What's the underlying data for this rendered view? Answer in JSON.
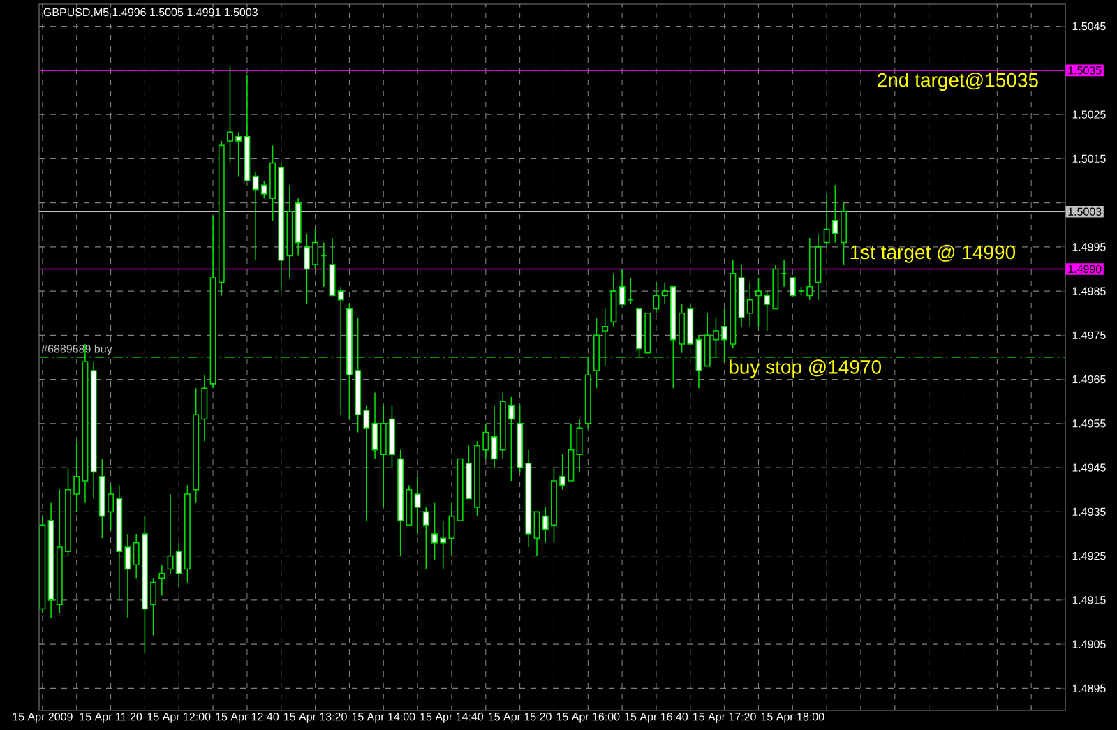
{
  "chart_data": {
    "type": "candlestick",
    "title": "GBPUSD,M5 1.4996 1.5005 1.4991 1.5003",
    "color": "#00dd00",
    "x": [
      "2009-04-15T10:40",
      "2009-04-15T10:45",
      "2009-04-15T10:50",
      "2009-04-15T10:55",
      "2009-04-15T11:00",
      "2009-04-15T11:05",
      "2009-04-15T11:10",
      "2009-04-15T11:15",
      "2009-04-15T11:20",
      "2009-04-15T11:25",
      "2009-04-15T11:30",
      "2009-04-15T11:35",
      "2009-04-15T11:40",
      "2009-04-15T11:45",
      "2009-04-15T11:50",
      "2009-04-15T11:55",
      "2009-04-15T12:00",
      "2009-04-15T12:05",
      "2009-04-15T12:10",
      "2009-04-15T12:15",
      "2009-04-15T12:20",
      "2009-04-15T12:25",
      "2009-04-15T12:30",
      "2009-04-15T12:35",
      "2009-04-15T12:40",
      "2009-04-15T12:45",
      "2009-04-15T12:50",
      "2009-04-15T12:55",
      "2009-04-15T13:00",
      "2009-04-15T13:05",
      "2009-04-15T13:10",
      "2009-04-15T13:15",
      "2009-04-15T13:20",
      "2009-04-15T13:25",
      "2009-04-15T13:30",
      "2009-04-15T13:35",
      "2009-04-15T13:40",
      "2009-04-15T13:45",
      "2009-04-15T13:50",
      "2009-04-15T13:55",
      "2009-04-15T14:00",
      "2009-04-15T14:05",
      "2009-04-15T14:10",
      "2009-04-15T14:15",
      "2009-04-15T14:20",
      "2009-04-15T14:25",
      "2009-04-15T14:30",
      "2009-04-15T14:35",
      "2009-04-15T14:40",
      "2009-04-15T14:45",
      "2009-04-15T14:50",
      "2009-04-15T14:55",
      "2009-04-15T15:00",
      "2009-04-15T15:05",
      "2009-04-15T15:10",
      "2009-04-15T15:15",
      "2009-04-15T15:20",
      "2009-04-15T15:25",
      "2009-04-15T15:30",
      "2009-04-15T15:35",
      "2009-04-15T15:40",
      "2009-04-15T15:45",
      "2009-04-15T15:50",
      "2009-04-15T15:55",
      "2009-04-15T16:00",
      "2009-04-15T16:05",
      "2009-04-15T16:10",
      "2009-04-15T16:15",
      "2009-04-15T16:20",
      "2009-04-15T16:25",
      "2009-04-15T16:30",
      "2009-04-15T16:35",
      "2009-04-15T16:40",
      "2009-04-15T16:45",
      "2009-04-15T16:50",
      "2009-04-15T16:55",
      "2009-04-15T17:00",
      "2009-04-15T17:05",
      "2009-04-15T17:10",
      "2009-04-15T17:15",
      "2009-04-15T17:20",
      "2009-04-15T17:25",
      "2009-04-15T17:30",
      "2009-04-15T17:35",
      "2009-04-15T17:40",
      "2009-04-15T17:45",
      "2009-04-15T17:50",
      "2009-04-15T17:55",
      "2009-04-15T18:00",
      "2009-04-15T18:05",
      "2009-04-15T18:10",
      "2009-04-15T18:15",
      "2009-04-15T18:20",
      "2009-04-15T18:25",
      "2009-04-15T18:30"
    ],
    "ohlc": [
      [
        1.4913,
        1.4934,
        1.4912,
        1.4932
      ],
      [
        1.4933,
        1.4937,
        1.4911,
        1.4915
      ],
      [
        1.4914,
        1.494,
        1.4912,
        1.4927
      ],
      [
        1.4926,
        1.4945,
        1.4925,
        1.494
      ],
      [
        1.4939,
        1.4951,
        1.4935,
        1.4943
      ],
      [
        1.4942,
        1.4973,
        1.4937,
        1.4969
      ],
      [
        1.4967,
        1.4969,
        1.4938,
        1.4944
      ],
      [
        1.4943,
        1.4947,
        1.4929,
        1.4934
      ],
      [
        1.4935,
        1.4941,
        1.4931,
        1.4939
      ],
      [
        1.4938,
        1.4941,
        1.4915,
        1.4926
      ],
      [
        1.4927,
        1.493,
        1.4911,
        1.4922
      ],
      [
        1.4923,
        1.493,
        1.492,
        1.4928
      ],
      [
        1.493,
        1.4934,
        1.4903,
        1.4913
      ],
      [
        1.4914,
        1.492,
        1.4907,
        1.4919
      ],
      [
        1.492,
        1.4923,
        1.4916,
        1.4921
      ],
      [
        1.4922,
        1.4939,
        1.4921,
        1.4925
      ],
      [
        1.4926,
        1.4928,
        1.4918,
        1.4921
      ],
      [
        1.4922,
        1.4941,
        1.4919,
        1.4939
      ],
      [
        1.494,
        1.4963,
        1.4937,
        1.4957
      ],
      [
        1.4956,
        1.4966,
        1.4951,
        1.4963
      ],
      [
        1.4964,
        1.5002,
        1.4963,
        1.4988
      ],
      [
        1.4987,
        1.5019,
        1.4984,
        1.5018
      ],
      [
        1.5019,
        1.5036,
        1.5014,
        1.5021
      ],
      [
        1.502,
        1.5021,
        1.5011,
        1.5019
      ],
      [
        1.502,
        1.5034,
        1.501,
        1.501
      ],
      [
        1.5011,
        1.5012,
        1.4992,
        1.5008
      ],
      [
        1.5009,
        1.501,
        1.5006,
        1.5007
      ],
      [
        1.5006,
        1.5018,
        1.5001,
        1.5014
      ],
      [
        1.5013,
        1.5014,
        1.4985,
        1.4992
      ],
      [
        1.4993,
        1.5009,
        1.4988,
        1.5003
      ],
      [
        1.5005,
        1.5006,
        1.4993,
        1.4996
      ],
      [
        1.4995,
        1.4998,
        1.4982,
        1.499
      ],
      [
        1.4991,
        1.4999,
        1.499,
        1.4996
      ],
      [
        1.4993,
        1.4996,
        1.4986,
        1.4993
      ],
      [
        1.4991,
        1.4997,
        1.4984,
        1.4984
      ],
      [
        1.4985,
        1.4986,
        1.4957,
        1.4983
      ],
      [
        1.4981,
        1.4982,
        1.4956,
        1.4966
      ],
      [
        1.4967,
        1.4979,
        1.4953,
        1.4957
      ],
      [
        1.4958,
        1.4959,
        1.4933,
        1.4954
      ],
      [
        1.4955,
        1.4962,
        1.4947,
        1.4949
      ],
      [
        1.4948,
        1.4959,
        1.4936,
        1.4955
      ],
      [
        1.4956,
        1.4959,
        1.4945,
        1.4948
      ],
      [
        1.4947,
        1.4949,
        1.4925,
        1.4933
      ],
      [
        1.4932,
        1.4941,
        1.4932,
        1.494
      ],
      [
        1.4939,
        1.4943,
        1.493,
        1.4936
      ],
      [
        1.4935,
        1.4936,
        1.4922,
        1.4932
      ],
      [
        1.493,
        1.4937,
        1.4924,
        1.4928
      ],
      [
        1.4929,
        1.4933,
        1.4922,
        1.4928
      ],
      [
        1.4929,
        1.4937,
        1.4925,
        1.4934
      ],
      [
        1.4933,
        1.4947,
        1.4933,
        1.4947
      ],
      [
        1.4946,
        1.495,
        1.4938,
        1.4938
      ],
      [
        1.4936,
        1.4951,
        1.4934,
        1.495
      ],
      [
        1.4949,
        1.4955,
        1.4947,
        1.4953
      ],
      [
        1.4952,
        1.4959,
        1.4945,
        1.4947
      ],
      [
        1.4949,
        1.4962,
        1.4947,
        1.496
      ],
      [
        1.4959,
        1.4961,
        1.4942,
        1.4956
      ],
      [
        1.4955,
        1.4959,
        1.4944,
        1.4945
      ],
      [
        1.4946,
        1.4949,
        1.4927,
        1.493
      ],
      [
        1.4929,
        1.4935,
        1.4925,
        1.4935
      ],
      [
        1.4934,
        1.4936,
        1.4928,
        1.4931
      ],
      [
        1.4932,
        1.4945,
        1.4928,
        1.4942
      ],
      [
        1.4943,
        1.4948,
        1.494,
        1.4941
      ],
      [
        1.4942,
        1.4955,
        1.4942,
        1.4949
      ],
      [
        1.4948,
        1.4956,
        1.4944,
        1.4954
      ],
      [
        1.4955,
        1.497,
        1.4954,
        1.4966
      ],
      [
        1.4967,
        1.4979,
        1.4963,
        1.4975
      ],
      [
        1.4976,
        1.4981,
        1.4968,
        1.4977
      ],
      [
        1.4978,
        1.4989,
        1.4977,
        1.4985
      ],
      [
        1.4986,
        1.499,
        1.4982,
        1.4982
      ],
      [
        1.4983,
        1.4988,
        1.4982,
        1.4983
      ],
      [
        1.4981,
        1.4981,
        1.497,
        1.4972
      ],
      [
        1.4971,
        1.498,
        1.4971,
        1.498
      ],
      [
        1.4981,
        1.4987,
        1.498,
        1.4984
      ],
      [
        1.4984,
        1.4987,
        1.4982,
        1.4985
      ],
      [
        1.4986,
        1.4986,
        1.4963,
        1.4974
      ],
      [
        1.4973,
        1.4982,
        1.4971,
        1.498
      ],
      [
        1.4981,
        1.4982,
        1.4973,
        1.4973
      ],
      [
        1.4974,
        1.4975,
        1.4963,
        1.4967
      ],
      [
        1.4968,
        1.498,
        1.4968,
        1.4975
      ],
      [
        1.4974,
        1.4979,
        1.497,
        1.4976
      ],
      [
        1.4977,
        1.4981,
        1.4969,
        1.4974
      ],
      [
        1.4973,
        1.4992,
        1.4972,
        1.4989
      ],
      [
        1.4988,
        1.4991,
        1.4977,
        1.4979
      ],
      [
        1.498,
        1.4987,
        1.4977,
        1.4983
      ],
      [
        1.4984,
        1.4988,
        1.4977,
        1.4985
      ],
      [
        1.4984,
        1.4985,
        1.4976,
        1.4982
      ],
      [
        1.4981,
        1.4991,
        1.4981,
        1.499
      ],
      [
        1.4989,
        1.4992,
        1.4986,
        1.4989
      ],
      [
        1.4988,
        1.4988,
        1.4984,
        1.4984
      ],
      [
        1.4985,
        1.4986,
        1.4984,
        1.4985
      ],
      [
        1.4984,
        1.4997,
        1.4983,
        1.4986
      ],
      [
        1.4987,
        1.4998,
        1.4983,
        1.4995
      ],
      [
        1.4996,
        1.5007,
        1.4995,
        1.4999
      ],
      [
        1.5001,
        1.5009,
        1.4996,
        1.4998
      ],
      [
        1.4996,
        1.5005,
        1.4991,
        1.5003
      ]
    ],
    "xlim": [
      "2009-04-15T10:38",
      "2009-04-15T20:40"
    ],
    "ylim": [
      1.489,
      1.505
    ],
    "xticks": [
      {
        "value": "2009-04-15T10:40",
        "label": "15 Apr 2009"
      },
      {
        "value": "2009-04-15T11:00",
        "label": null
      },
      {
        "value": "2009-04-15T11:20",
        "label": "15 Apr 11:20"
      },
      {
        "value": "2009-04-15T11:40",
        "label": null
      },
      {
        "value": "2009-04-15T12:00",
        "label": "15 Apr 12:00"
      },
      {
        "value": "2009-04-15T12:20",
        "label": null
      },
      {
        "value": "2009-04-15T12:40",
        "label": "15 Apr 12:40"
      },
      {
        "value": "2009-04-15T13:00",
        "label": null
      },
      {
        "value": "2009-04-15T13:20",
        "label": "15 Apr 13:20"
      },
      {
        "value": "2009-04-15T13:40",
        "label": null
      },
      {
        "value": "2009-04-15T14:00",
        "label": "15 Apr 14:00"
      },
      {
        "value": "2009-04-15T14:20",
        "label": null
      },
      {
        "value": "2009-04-15T14:40",
        "label": "15 Apr 14:40"
      },
      {
        "value": "2009-04-15T15:00",
        "label": null
      },
      {
        "value": "2009-04-15T15:20",
        "label": "15 Apr 15:20"
      },
      {
        "value": "2009-04-15T15:40",
        "label": null
      },
      {
        "value": "2009-04-15T16:00",
        "label": "15 Apr 16:00"
      },
      {
        "value": "2009-04-15T16:20",
        "label": null
      },
      {
        "value": "2009-04-15T16:40",
        "label": "15 Apr 16:40"
      },
      {
        "value": "2009-04-15T17:00",
        "label": null
      },
      {
        "value": "2009-04-15T17:20",
        "label": "15 Apr 17:20"
      },
      {
        "value": "2009-04-15T17:40",
        "label": null
      },
      {
        "value": "2009-04-15T18:00",
        "label": "15 Apr 18:00"
      },
      {
        "value": "2009-04-15T18:20",
        "label": null
      },
      {
        "value": "2009-04-15T18:40",
        "label": null
      },
      {
        "value": "2009-04-15T19:00",
        "label": null
      },
      {
        "value": "2009-04-15T19:20",
        "label": null
      },
      {
        "value": "2009-04-15T19:40",
        "label": null
      },
      {
        "value": "2009-04-15T20:00",
        "label": null
      },
      {
        "value": "2009-04-15T20:20",
        "label": null
      }
    ],
    "yticks": [
      1.4895,
      1.4905,
      1.4915,
      1.4925,
      1.4935,
      1.4945,
      1.4955,
      1.4965,
      1.4975,
      1.4985,
      1.4995,
      {
        "value": 1.5005,
        "label": null
      },
      1.5015,
      1.5025,
      {
        "value": 1.5035,
        "label": null
      },
      1.5045
    ],
    "grid": true,
    "ref_lines": [
      {
        "axis": "y",
        "value": 1.5035,
        "label": "1.5035",
        "color": "#ff00ff"
      },
      {
        "axis": "y",
        "value": 1.5003,
        "label": "1.5003",
        "color": "#c0c0c0"
      },
      {
        "axis": "y",
        "value": 1.499,
        "label": "1.4990",
        "color": "#ff00ff"
      },
      {
        "axis": "y",
        "value": 1.497,
        "label": "#6889689 buy",
        "color": "#00c000",
        "line_style": "dashed"
      }
    ],
    "annotations": [
      {
        "text": "2nd target@15035",
        "x": "2009-04-15T18:48",
        "y": 1.5035
      },
      {
        "text": "1st target @ 14990",
        "x": "2009-04-15T18:32",
        "y": 1.4996
      },
      {
        "text": "buy stop @14970",
        "x": "2009-04-15T17:21",
        "y": 1.497
      }
    ]
  }
}
